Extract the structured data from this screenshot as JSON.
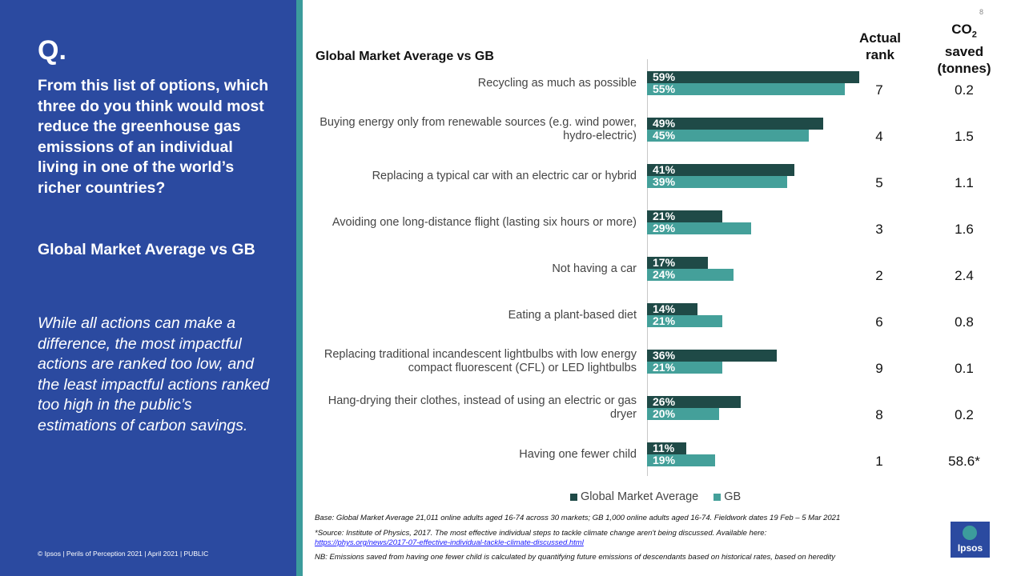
{
  "sidebar": {
    "q_mark": "Q.",
    "question": "From this list of options, which three do you think would most reduce the greenhouse gas emissions of an individual living in one of the world’s richer countries?",
    "subtitle": "Global Market Average vs GB",
    "insight": "While all actions can make a difference, the most impactful actions are ranked too low, and the least impactful actions ranked too high in the public’s estimations of carbon savings.",
    "copyright": "© Ipsos | Perils of Perception 2021 | April 2021 | PUBLIC"
  },
  "page_number": "8",
  "table_headers": {
    "rank": "Actual rank",
    "co2_prefix": "CO",
    "co2_sub": "2",
    "co2_rest": "saved (tonnes)"
  },
  "rows": [
    {
      "rank": "7",
      "co2": "0.2"
    },
    {
      "rank": "4",
      "co2": "1.5"
    },
    {
      "rank": "5",
      "co2": "1.1"
    },
    {
      "rank": "3",
      "co2": "1.6"
    },
    {
      "rank": "2",
      "co2": "2.4"
    },
    {
      "rank": "6",
      "co2": "0.8"
    },
    {
      "rank": "9",
      "co2": "0.1"
    },
    {
      "rank": "8",
      "co2": "0.2"
    },
    {
      "rank": "1",
      "co2": "58.6*"
    }
  ],
  "footnotes": {
    "base": "Base: Global Market Average 21,011 online adults aged 16-74 across 30 markets; GB 1,000 online adults aged 16-74.  Fieldwork dates 19 Feb – 5 Mar 2021",
    "source": "*Source: Institute of Physics, 2017. The most effective individual steps to tackle climate change aren't being discussed. Available here:",
    "link": "https://phys.org/news/2017-07-effective-individual-tackle-climate-discussed.html",
    "nb": "NB: Emissions saved from having one fewer child is calculated by quantifying future emissions of descendants based on historical rates, based on heredity"
  },
  "logo_text": "Ipsos",
  "colors": {
    "sidebar": "#2b4aa0",
    "stripe": "#3c9c9c",
    "global": "#1f4a47",
    "gb": "#44a09a"
  },
  "chart_data": {
    "type": "bar",
    "orientation": "horizontal",
    "title": "Global Market Average vs GB",
    "categories": [
      "Recycling as much as possible",
      "Buying energy only from renewable sources (e.g. wind power, hydro-electric)",
      "Replacing a typical car with an electric car or hybrid",
      "Avoiding one long-distance flight (lasting six hours or more)",
      "Not having a car",
      "Eating a plant-based diet",
      "Replacing traditional incandescent lightbulbs with low energy compact fluorescent (CFL) or LED lightbulbs",
      "Hang-drying their clothes, instead of using an electric or gas dryer",
      "Having one fewer child"
    ],
    "series": [
      {
        "name": "Global Market Average",
        "values": [
          59,
          49,
          41,
          21,
          17,
          14,
          36,
          26,
          11
        ]
      },
      {
        "name": "GB",
        "values": [
          55,
          45,
          39,
          29,
          24,
          21,
          21,
          20,
          19
        ]
      }
    ],
    "value_format": "percent",
    "legend": "bottom"
  }
}
